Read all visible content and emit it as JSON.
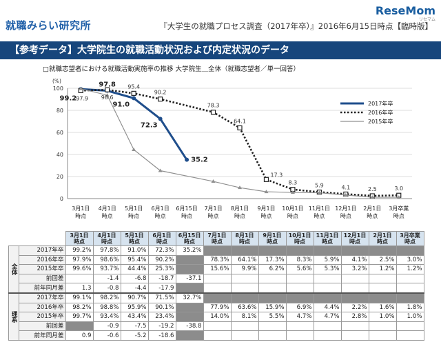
{
  "header": {
    "brand": "就職みらい研究所",
    "source": "『大学生の就職プロセス調査（2017年卒）』2016年6月15日時点【臨時版】",
    "logo": "ReseMom",
    "logo_sub": "リセマム"
  },
  "band_title": "【参考データ】大学院生の就職活動状況および内定状況のデータ",
  "chart_subtitle": "□就職志望者における就職活動実施率の推移  大学院生＿全体（就職志望者／単一回答）",
  "chart_data": {
    "type": "line",
    "categories": [
      "3月1日時点",
      "4月1日時点",
      "5月1日時点",
      "6月1日時点",
      "6月15日時点",
      "7月1日時点",
      "8月1日時点",
      "9月1日時点",
      "10月1日時点",
      "11月1日時点",
      "12月1日時点",
      "2月1日時点",
      "3月卒業時点"
    ],
    "y_unit": "(%)",
    "ylim": [
      0,
      100
    ],
    "yticks": [
      0,
      20,
      40,
      60,
      80,
      100
    ],
    "legend_position": "right",
    "series": [
      {
        "name": "2017年卒",
        "color": "#1f4e8c",
        "style": "solid",
        "values": [
          99.2,
          97.8,
          91.0,
          72.3,
          35.2,
          null,
          null,
          null,
          null,
          null,
          null,
          null,
          null
        ]
      },
      {
        "name": "2016年卒",
        "color": "#222222",
        "style": "dotted",
        "values": [
          97.9,
          98.6,
          95.4,
          90.2,
          null,
          78.3,
          64.1,
          17.3,
          8.3,
          5.9,
          4.1,
          2.5,
          3.0
        ]
      },
      {
        "name": "2015年卒",
        "color": "#909090",
        "style": "thin",
        "values": [
          99.6,
          93.7,
          44.4,
          25.3,
          null,
          15.6,
          9.9,
          6.2,
          5.6,
          5.3,
          3.2,
          1.2,
          1.2
        ]
      }
    ],
    "labels": {
      "2017年卒": [
        "99.2",
        "97.8",
        "91.0",
        "72.3",
        "35.2"
      ],
      "2016年卒": [
        "97.9",
        "98.6",
        "95.4",
        "90.2",
        "",
        "78.3",
        "64.1",
        "17.3",
        "8.3",
        "5.9",
        "4.1",
        "2.5",
        "3.0"
      ]
    }
  },
  "table": {
    "headers": [
      "3月1日時点",
      "4月1日時点",
      "5月1日時点",
      "6月1日時点",
      "6月15日時点",
      "7月1日時点",
      "8月1日時点",
      "9月1日時点",
      "10月1日時点",
      "11月1日時点",
      "12月1日時点",
      "2月1日時点",
      "3月卒業時点"
    ],
    "groups": [
      {
        "name": "全体",
        "rows": [
          {
            "label": "2017年卒",
            "cells": [
              "99.2%",
              "97.8%",
              "91.0%",
              "72.3%",
              "35.2%",
              "",
              "",
              "",
              "",
              "",
              "",
              "",
              ""
            ],
            "shade": [
              false,
              false,
              false,
              false,
              false,
              true,
              true,
              true,
              true,
              true,
              true,
              true,
              true
            ]
          },
          {
            "label": "2016年卒",
            "cells": [
              "97.9%",
              "98.6%",
              "95.4%",
              "90.2%",
              "",
              "78.3%",
              "64.1%",
              "17.3%",
              "8.3%",
              "5.9%",
              "4.1%",
              "2.5%",
              "3.0%"
            ],
            "shade": [
              false,
              false,
              false,
              false,
              true,
              false,
              false,
              false,
              false,
              false,
              false,
              false,
              false
            ]
          },
          {
            "label": "2015年卒",
            "cells": [
              "99.6%",
              "93.7%",
              "44.4%",
              "25.3%",
              "",
              "15.6%",
              "9.9%",
              "6.2%",
              "5.6%",
              "5.3%",
              "3.2%",
              "1.2%",
              "1.2%"
            ],
            "shade": [
              false,
              false,
              false,
              false,
              true,
              false,
              false,
              false,
              false,
              false,
              false,
              false,
              false
            ]
          },
          {
            "label": "前回差",
            "cells": [
              "",
              "-1.4",
              "-6.8",
              "-18.7",
              "-37.1",
              "",
              "",
              "",
              "",
              "",
              "",
              "",
              ""
            ],
            "shade": [
              false,
              false,
              false,
              false,
              false,
              false,
              false,
              false,
              false,
              false,
              false,
              false,
              false
            ]
          },
          {
            "label": "前年同月差",
            "cells": [
              "1.3",
              "-0.8",
              "-4.4",
              "-17.9",
              "",
              "",
              "",
              "",
              "",
              "",
              "",
              "",
              ""
            ],
            "shade": [
              false,
              false,
              false,
              false,
              true,
              false,
              false,
              false,
              false,
              false,
              false,
              false,
              false
            ]
          }
        ]
      },
      {
        "name": "理系",
        "rows": [
          {
            "label": "2017年卒",
            "cells": [
              "99.1%",
              "98.2%",
              "90.7%",
              "71.5%",
              "32.7%",
              "",
              "",
              "",
              "",
              "",
              "",
              "",
              ""
            ],
            "shade": [
              false,
              false,
              false,
              false,
              false,
              true,
              true,
              true,
              true,
              true,
              true,
              true,
              true
            ]
          },
          {
            "label": "2016年卒",
            "cells": [
              "98.2%",
              "98.8%",
              "95.9%",
              "90.1%",
              "",
              "77.9%",
              "63.6%",
              "15.9%",
              "6.9%",
              "4.4%",
              "2.2%",
              "1.6%",
              "1.8%"
            ],
            "shade": [
              false,
              false,
              false,
              false,
              true,
              false,
              false,
              false,
              false,
              false,
              false,
              false,
              false
            ]
          },
          {
            "label": "2015年卒",
            "cells": [
              "99.7%",
              "93.4%",
              "43.4%",
              "23.4%",
              "",
              "14.0%",
              "8.1%",
              "5.5%",
              "4.7%",
              "4.7%",
              "2.8%",
              "1.0%",
              "1.0%"
            ],
            "shade": [
              false,
              false,
              false,
              false,
              true,
              false,
              false,
              false,
              false,
              false,
              false,
              false,
              false
            ]
          },
          {
            "label": "前回差",
            "cells": [
              "",
              "-0.9",
              "-7.5",
              "-19.2",
              "-38.8",
              "",
              "",
              "",
              "",
              "",
              "",
              "",
              ""
            ],
            "shade": [
              true,
              false,
              false,
              false,
              false,
              false,
              false,
              false,
              false,
              false,
              false,
              false,
              false
            ]
          },
          {
            "label": "前年同月差",
            "cells": [
              "0.9",
              "-0.6",
              "-5.2",
              "-18.6",
              "",
              "",
              "",
              "",
              "",
              "",
              "",
              "",
              ""
            ],
            "shade": [
              false,
              false,
              false,
              false,
              true,
              false,
              false,
              false,
              false,
              false,
              false,
              false,
              false
            ]
          }
        ]
      }
    ]
  }
}
